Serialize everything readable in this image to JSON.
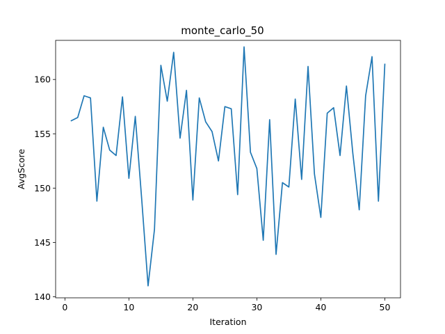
{
  "chart_data": {
    "type": "line",
    "title": "monte_carlo_50",
    "xlabel": "Iteration",
    "ylabel": "AvgScore",
    "xlim": [
      -1.45,
      52.45
    ],
    "ylim": [
      139.9,
      163.6
    ],
    "xticks": [
      0,
      10,
      20,
      30,
      40,
      50
    ],
    "yticks": [
      140,
      145,
      150,
      155,
      160
    ],
    "grid": false,
    "color": "#1f77b4",
    "series": [
      {
        "x": [
          1,
          2,
          3,
          4,
          5,
          6,
          7,
          8,
          9,
          10,
          11,
          12,
          13,
          14,
          15,
          16,
          17,
          18,
          19,
          20,
          21,
          22,
          23,
          24,
          25,
          26,
          27,
          28,
          29,
          30,
          31,
          32,
          33,
          34,
          35,
          36,
          37,
          38,
          39,
          40,
          41,
          42,
          43,
          44,
          45,
          46,
          47,
          48,
          49,
          50
        ],
        "values": [
          156.2,
          156.5,
          158.5,
          158.3,
          148.8,
          155.6,
          153.5,
          153.0,
          158.4,
          150.9,
          156.6,
          149.0,
          141.0,
          146.2,
          161.3,
          158.0,
          162.5,
          154.6,
          159.0,
          148.9,
          158.3,
          156.1,
          155.2,
          152.5,
          157.5,
          157.3,
          149.4,
          163.0,
          153.3,
          151.8,
          145.2,
          156.3,
          143.9,
          150.5,
          150.1,
          158.2,
          150.8,
          161.2,
          151.3,
          147.3,
          156.9,
          157.4,
          153.0,
          159.4,
          153.2,
          148.0,
          158.5,
          162.1,
          148.8,
          161.4
        ]
      }
    ]
  }
}
